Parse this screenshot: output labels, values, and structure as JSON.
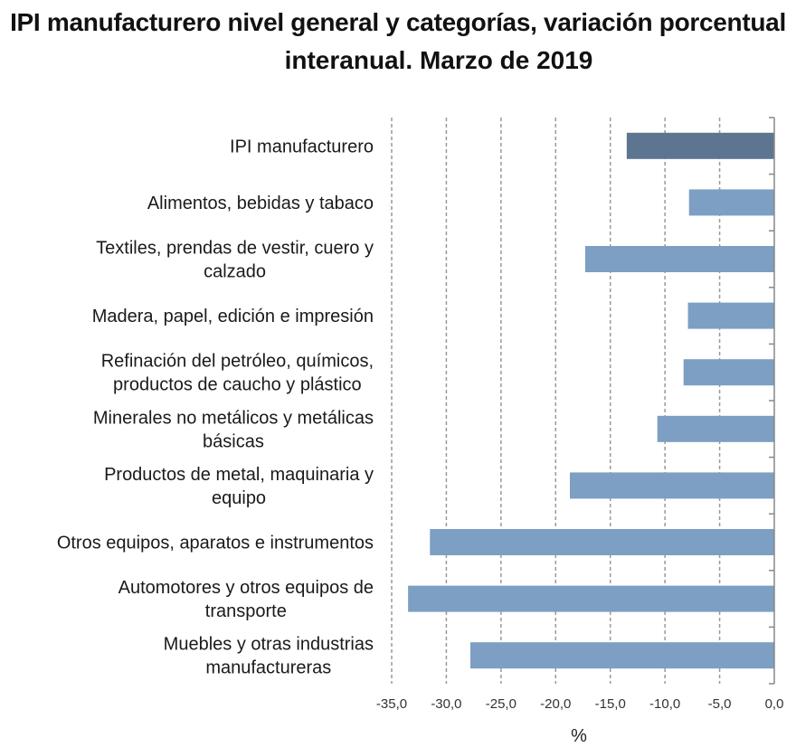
{
  "title": {
    "line1": "IPI manufacturero nivel general y categorías, variación porcentual",
    "line2": "interanual. Marzo de 2019"
  },
  "chart_data": {
    "type": "bar",
    "orientation": "horizontal",
    "title": "IPI manufacturero nivel general y categorías, variación porcentual interanual. Marzo de 2019",
    "xlabel": "%",
    "ylabel": "",
    "xlim": [
      -35,
      0
    ],
    "xticks": [
      "-35,0",
      "-30,0",
      "-25,0",
      "-20,0",
      "-15,0",
      "-10,0",
      "-5,0",
      "0,0"
    ],
    "grid": "vertical dashed",
    "legend": "none",
    "categories": [
      [
        "IPI manufacturero"
      ],
      [
        "Alimentos, bebidas y tabaco"
      ],
      [
        "Textiles, prendas de vestir, cuero y",
        "calzado"
      ],
      [
        "Madera, papel, edición e impresión"
      ],
      [
        "Refinación del petróleo, químicos,",
        "productos de caucho y plástico"
      ],
      [
        "Minerales no metálicos y metálicas",
        "básicas"
      ],
      [
        "Productos de metal, maquinaria y",
        "equipo"
      ],
      [
        "Otros equipos, aparatos e instrumentos"
      ],
      [
        "Automotores y otros equipos de",
        "transporte"
      ],
      [
        "Muebles y otras industrias",
        "manufactureras"
      ]
    ],
    "values": [
      -13.5,
      -7.8,
      -17.3,
      -7.9,
      -8.3,
      -10.7,
      -18.7,
      -31.5,
      -33.5,
      -27.8
    ],
    "colors": {
      "highlight": "#5d7590",
      "bar": "#7c9fc3",
      "grid": "#999999",
      "axis": "#888888"
    },
    "highlight_index": 0
  }
}
